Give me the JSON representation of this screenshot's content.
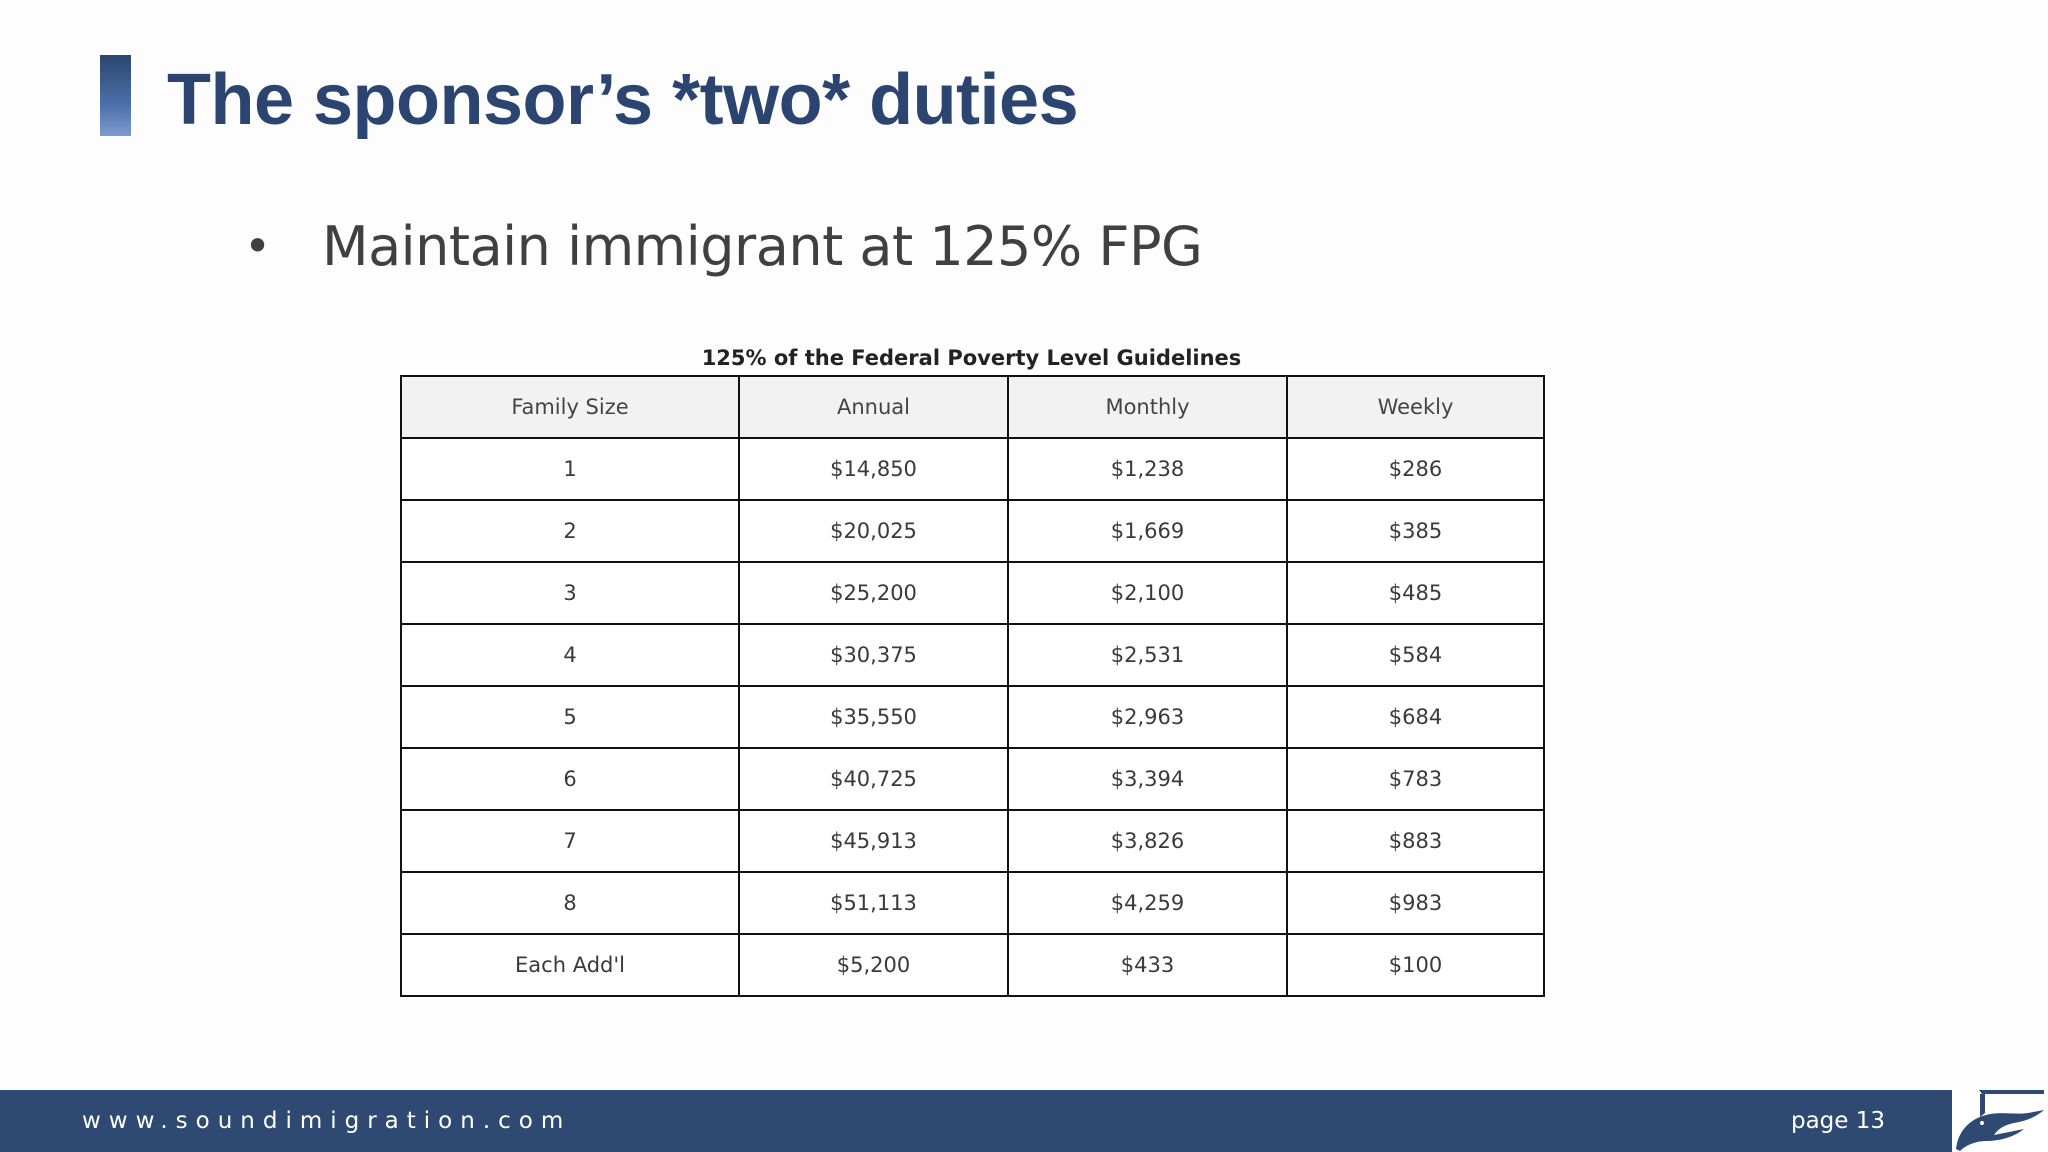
{
  "slide": {
    "title": "The sponsor’s *two* duties",
    "bullets": [
      {
        "marker": "•",
        "text": "Maintain immigrant at 125% FPG"
      }
    ]
  },
  "table": {
    "caption": "125% of the Federal Poverty Level Guidelines",
    "columns": [
      "Family Size",
      "Annual",
      "Monthly",
      "Weekly"
    ],
    "rows": [
      [
        "1",
        "$14,850",
        "$1,238",
        "$286"
      ],
      [
        "2",
        "$20,025",
        "$1,669",
        "$385"
      ],
      [
        "3",
        "$25,200",
        "$2,100",
        "$485"
      ],
      [
        "4",
        "$30,375",
        "$2,531",
        "$584"
      ],
      [
        "5",
        "$35,550",
        "$2,963",
        "$684"
      ],
      [
        "6",
        "$40,725",
        "$3,394",
        "$783"
      ],
      [
        "7",
        "$45,913",
        "$3,826",
        "$883"
      ],
      [
        "8",
        "$51,113",
        "$4,259",
        "$983"
      ],
      [
        "Each Add'l",
        "$5,200",
        "$433",
        "$100"
      ]
    ]
  },
  "footer": {
    "url": "www.soundimigration.com",
    "page_label": "page 13",
    "logo_icon": "bird-logo-icon"
  },
  "colors": {
    "title": "#2b4570",
    "accent_bar": "#4a6fa8",
    "footer_bg": "#2e4a73",
    "body_text": "#404040"
  }
}
